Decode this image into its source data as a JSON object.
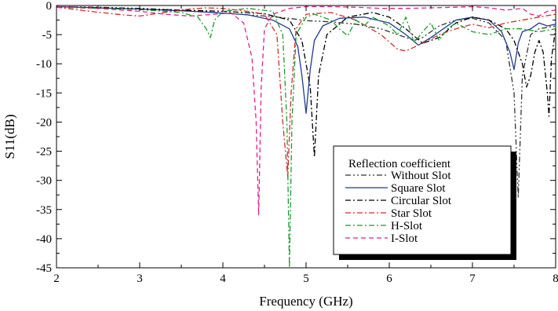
{
  "chart_data": {
    "type": "line",
    "xlabel": "Frequency (GHz)",
    "ylabel": "S11(dB)",
    "xlim": [
      2,
      8
    ],
    "ylim": [
      -45,
      0
    ],
    "xticks": [
      2,
      3,
      4,
      5,
      6,
      7,
      8
    ],
    "yticks": [
      0,
      -5,
      -10,
      -15,
      -20,
      -25,
      -30,
      -35,
      -40,
      -45
    ],
    "grid": false,
    "legend": {
      "title": "Reflection coefficient",
      "placement": "bottom-right"
    },
    "series": [
      {
        "name": "Without Slot",
        "color": "#333333",
        "dash": "dash-dot-dot",
        "x": [
          2.0,
          2.5,
          3.0,
          3.5,
          4.0,
          4.5,
          4.8,
          5.0,
          5.3,
          5.6,
          5.9,
          6.1,
          6.3,
          6.4,
          6.6,
          6.8,
          7.0,
          7.2,
          7.4,
          7.5,
          7.55,
          7.6,
          7.7,
          7.8,
          8.0
        ],
        "y": [
          -0.2,
          -0.3,
          -0.5,
          -0.8,
          -1.3,
          -1.8,
          -2.2,
          -2.6,
          -2.8,
          -3.2,
          -4.0,
          -5.0,
          -6.0,
          -5.5,
          -3.5,
          -2.5,
          -2.2,
          -3.0,
          -6.0,
          -15.0,
          -33.0,
          -12.0,
          -5.0,
          -4.0,
          -3.5
        ]
      },
      {
        "name": "Square Slot",
        "color": "#1f3a93",
        "dash": "solid",
        "x": [
          2.0,
          2.5,
          3.0,
          3.5,
          4.0,
          4.3,
          4.6,
          4.8,
          4.9,
          4.95,
          5.0,
          5.05,
          5.1,
          5.2,
          5.4,
          5.7,
          6.0,
          6.2,
          6.35,
          6.5,
          6.8,
          7.0,
          7.2,
          7.35,
          7.45,
          7.5,
          7.55,
          7.6,
          7.7,
          7.8,
          7.9,
          8.0
        ],
        "y": [
          -0.2,
          -0.4,
          -0.6,
          -0.9,
          -1.3,
          -1.6,
          -2.5,
          -4.0,
          -7.0,
          -12.0,
          -18.5,
          -11.0,
          -6.0,
          -3.5,
          -2.2,
          -2.0,
          -3.0,
          -5.0,
          -6.8,
          -5.5,
          -2.5,
          -2.0,
          -2.5,
          -4.5,
          -8.0,
          -11.0,
          -6.5,
          -4.5,
          -4.0,
          -3.0,
          -3.5,
          -3.2
        ]
      },
      {
        "name": "Circular Slot",
        "color": "#000000",
        "dash": "dash-dot",
        "x": [
          2.0,
          2.5,
          3.0,
          3.5,
          4.0,
          4.5,
          4.8,
          4.95,
          5.05,
          5.1,
          5.15,
          5.25,
          5.5,
          5.8,
          6.0,
          6.2,
          6.4,
          6.6,
          6.8,
          7.0,
          7.2,
          7.4,
          7.5,
          7.6,
          7.65,
          7.7,
          7.75,
          7.8,
          7.85,
          7.9,
          7.92,
          7.95,
          8.0
        ],
        "y": [
          -0.2,
          -0.4,
          -0.6,
          -0.8,
          -1.0,
          -1.4,
          -2.5,
          -6.0,
          -14.0,
          -26.0,
          -12.0,
          -5.0,
          -2.0,
          -1.2,
          -2.0,
          -4.0,
          -6.5,
          -5.5,
          -3.0,
          -2.0,
          -2.5,
          -4.0,
          -6.0,
          -10.0,
          -14.0,
          -12.0,
          -8.0,
          -6.0,
          -8.0,
          -15.0,
          -19.0,
          -9.0,
          -4.0
        ]
      },
      {
        "name": "Star Slot",
        "color": "#d62b2b",
        "dash": "dash-dot",
        "x": [
          2.0,
          2.4,
          2.8,
          3.0,
          3.3,
          3.6,
          3.8,
          4.0,
          4.3,
          4.5,
          4.65,
          4.72,
          4.78,
          4.82,
          4.88,
          5.0,
          5.3,
          5.6,
          5.9,
          6.1,
          6.2,
          6.4,
          6.6,
          6.8,
          7.0,
          7.2,
          7.4,
          7.6,
          7.8,
          8.0
        ],
        "y": [
          -0.3,
          -1.0,
          -1.6,
          -1.8,
          -1.2,
          -0.6,
          -0.4,
          -0.5,
          -1.0,
          -1.5,
          -5.0,
          -20.0,
          -29.5,
          -15.0,
          -4.0,
          -1.5,
          -1.2,
          -2.5,
          -5.0,
          -7.5,
          -7.8,
          -6.5,
          -5.0,
          -4.0,
          -3.2,
          -3.8,
          -3.0,
          -2.5,
          -2.0,
          -1.5
        ]
      },
      {
        "name": "H-Slot",
        "color": "#1a9a2a",
        "dash": "dash-dot",
        "x": [
          2.0,
          2.5,
          3.0,
          3.5,
          3.7,
          3.8,
          3.85,
          3.9,
          4.0,
          4.3,
          4.6,
          4.72,
          4.77,
          4.8,
          4.83,
          4.88,
          5.0,
          5.1,
          5.3,
          5.4,
          5.5,
          5.6,
          5.7,
          5.8,
          6.0,
          6.1,
          6.2,
          6.3,
          6.4,
          6.5,
          6.6,
          6.7,
          6.8,
          7.0,
          7.2,
          7.4,
          7.6,
          7.8,
          8.0
        ],
        "y": [
          -0.3,
          -0.5,
          -0.7,
          -1.2,
          -2.0,
          -4.0,
          -5.5,
          -2.5,
          -1.0,
          -0.5,
          -1.0,
          -5.0,
          -20.0,
          -45.0,
          -20.0,
          -5.0,
          -2.0,
          -1.5,
          -2.5,
          -4.0,
          -5.2,
          -2.5,
          -3.5,
          -2.0,
          -3.5,
          -5.0,
          -2.0,
          -6.5,
          -4.5,
          -3.0,
          -6.0,
          -4.0,
          -3.0,
          -4.5,
          -5.0,
          -4.0,
          -4.0,
          -4.5,
          -4.0
        ]
      },
      {
        "name": "I-Slot",
        "color": "#e0208f",
        "dash": "dashed",
        "x": [
          2.0,
          2.5,
          3.0,
          3.3,
          3.6,
          3.9,
          4.1,
          4.25,
          4.35,
          4.4,
          4.43,
          4.46,
          4.5,
          4.6,
          4.8,
          5.0,
          5.3,
          5.6,
          5.9,
          6.2,
          6.5,
          6.8,
          7.0,
          7.2,
          7.4,
          7.6,
          7.7,
          7.8,
          7.9,
          8.0
        ],
        "y": [
          -0.2,
          -0.5,
          -1.0,
          -1.5,
          -1.8,
          -1.5,
          -1.3,
          -3.0,
          -9.0,
          -20.0,
          -36.0,
          -14.0,
          -4.0,
          -1.5,
          -0.5,
          -0.2,
          -0.2,
          -0.3,
          -0.5,
          -0.5,
          -0.4,
          -0.3,
          -0.2,
          -0.4,
          -0.8,
          -0.5,
          -1.5,
          -1.8,
          -1.0,
          -0.8
        ]
      }
    ]
  }
}
